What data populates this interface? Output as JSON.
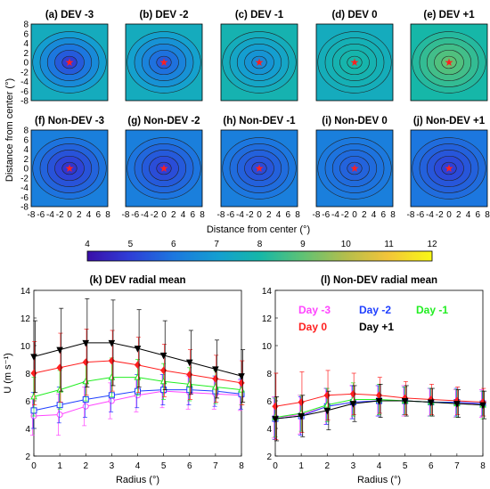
{
  "chart_data": [
    {
      "type": "heatmap",
      "group": "contour_maps",
      "xlabel": "Distance from center (°)",
      "ylabel": "Distance from center (°)",
      "x_ticks": [
        "-8",
        "-6",
        "-4",
        "-2",
        "0",
        "2",
        "4",
        "6",
        "8"
      ],
      "y_ticks": [
        "8",
        "6",
        "4",
        "2",
        "0",
        "-2",
        "-4",
        "-6",
        "-8"
      ],
      "xlim": [
        -8,
        8
      ],
      "ylim": [
        -8,
        8
      ],
      "colorbar": {
        "ticks": [
          "4",
          "5",
          "6",
          "7",
          "8",
          "9",
          "10",
          "11",
          "12"
        ],
        "range": [
          4,
          12
        ]
      },
      "panels": [
        {
          "title": "(a) DEV -3",
          "center_value": 5.0,
          "edge_value": 7.5
        },
        {
          "title": "(b) DEV -2",
          "center_value": 5.5,
          "edge_value": 7.5
        },
        {
          "title": "(c) DEV -1",
          "center_value": 6.5,
          "edge_value": 7.8
        },
        {
          "title": "(d) DEV 0",
          "center_value": 8.0,
          "edge_value": 7.5
        },
        {
          "title": "(e) DEV +1",
          "center_value": 9.0,
          "edge_value": 8.0
        },
        {
          "title": "(f) Non-DEV -3",
          "center_value": 4.8,
          "edge_value": 6.2
        },
        {
          "title": "(g) Non-DEV -2",
          "center_value": 5.0,
          "edge_value": 6.2
        },
        {
          "title": "(h) Non-DEV -1",
          "center_value": 5.2,
          "edge_value": 6.2
        },
        {
          "title": "(i) Non-DEV 0",
          "center_value": 5.5,
          "edge_value": 6.2
        },
        {
          "title": "(j) Non-DEV +1",
          "center_value": 5.0,
          "edge_value": 6.0
        }
      ],
      "colors": {
        "center_marker": "#ff2020"
      }
    },
    {
      "type": "line",
      "title": "(k) DEV radial mean",
      "xlabel": "Radius (°)",
      "ylabel": "U (m s⁻¹)",
      "x": [
        0,
        1,
        2,
        3,
        4,
        5,
        6,
        7,
        8
      ],
      "xlim": [
        0,
        8
      ],
      "ylim": [
        2,
        14
      ],
      "y_ticks": [
        "2",
        "4",
        "6",
        "8",
        "10",
        "12",
        "14"
      ],
      "x_ticks": [
        "0",
        "1",
        "2",
        "3",
        "4",
        "5",
        "6",
        "7",
        "8"
      ],
      "grid": false,
      "series": [
        {
          "name": "Day -3",
          "color": "#ff44ff",
          "marker": "circle",
          "values": [
            4.9,
            5.0,
            5.6,
            6.0,
            6.4,
            6.7,
            6.6,
            6.5,
            6.4
          ],
          "err": [
            1.4,
            1.5,
            1.4,
            1.3,
            1.2,
            1.2,
            1.2,
            1.1,
            1.1
          ]
        },
        {
          "name": "Day -2",
          "color": "#1f3fff",
          "marker": "square",
          "values": [
            5.3,
            5.7,
            6.1,
            6.4,
            6.7,
            6.8,
            6.8,
            6.7,
            6.5
          ],
          "err": [
            1.3,
            1.3,
            1.3,
            1.2,
            1.2,
            1.1,
            1.1,
            1.1,
            1.1
          ]
        },
        {
          "name": "Day -1",
          "color": "#22ee22",
          "marker": "triangle",
          "values": [
            6.3,
            6.8,
            7.4,
            7.7,
            7.7,
            7.4,
            7.2,
            7.0,
            6.8
          ],
          "err": [
            1.4,
            1.4,
            1.4,
            1.4,
            1.3,
            1.3,
            1.2,
            1.2,
            1.1
          ]
        },
        {
          "name": "Day 0",
          "color": "#ff2020",
          "marker": "diamond",
          "values": [
            8.0,
            8.4,
            8.8,
            8.9,
            8.6,
            8.2,
            7.9,
            7.6,
            7.3
          ],
          "err": [
            2.3,
            2.5,
            2.4,
            2.2,
            2.0,
            1.9,
            1.8,
            1.7,
            1.6
          ]
        },
        {
          "name": "Day +1",
          "color": "#000000",
          "marker": "triangle-down",
          "values": [
            9.2,
            9.7,
            10.2,
            10.2,
            9.8,
            9.3,
            8.8,
            8.3,
            7.8
          ],
          "err": [
            2.6,
            3.0,
            3.2,
            3.1,
            2.8,
            2.5,
            2.3,
            2.1,
            1.9
          ]
        }
      ]
    },
    {
      "type": "line",
      "title": "(l) Non-DEV radial mean",
      "xlabel": "Radius (°)",
      "x": [
        0,
        1,
        2,
        3,
        4,
        5,
        6,
        7,
        8
      ],
      "xlim": [
        0,
        8
      ],
      "ylim": [
        2,
        14
      ],
      "y_ticks": [
        "2",
        "4",
        "6",
        "8",
        "10",
        "12",
        "14"
      ],
      "x_ticks": [
        "0",
        "1",
        "2",
        "3",
        "4",
        "5",
        "6",
        "7",
        "8"
      ],
      "grid": false,
      "legend": {
        "placement": "top-right"
      },
      "series": [
        {
          "name": "Day -3",
          "color": "#ff44ff",
          "marker": "circle",
          "values": [
            4.8,
            5.0,
            5.6,
            5.9,
            6.0,
            6.0,
            5.9,
            5.8,
            5.8
          ],
          "err": [
            1.5,
            1.4,
            1.3,
            1.2,
            1.1,
            1.1,
            1.0,
            1.0,
            1.0
          ]
        },
        {
          "name": "Day -2",
          "color": "#1f3fff",
          "marker": "square",
          "values": [
            4.7,
            4.9,
            5.6,
            5.9,
            6.0,
            6.0,
            5.9,
            5.9,
            5.8
          ],
          "err": [
            1.5,
            1.4,
            1.3,
            1.2,
            1.1,
            1.0,
            1.0,
            1.0,
            0.9
          ]
        },
        {
          "name": "Day -1",
          "color": "#22ee22",
          "marker": "triangle",
          "values": [
            4.8,
            5.1,
            5.7,
            6.1,
            6.1,
            6.0,
            5.9,
            5.8,
            5.7
          ],
          "err": [
            1.4,
            1.3,
            1.2,
            1.2,
            1.1,
            1.0,
            1.0,
            1.0,
            1.0
          ]
        },
        {
          "name": "Day 0",
          "color": "#ff2020",
          "marker": "diamond",
          "values": [
            5.6,
            5.9,
            6.4,
            6.5,
            6.4,
            6.2,
            6.1,
            6.0,
            5.9
          ],
          "err": [
            2.4,
            2.2,
            1.8,
            1.5,
            1.3,
            1.2,
            1.1,
            1.0,
            1.0
          ]
        },
        {
          "name": "Day +1",
          "color": "#000000",
          "marker": "triangle-down",
          "values": [
            4.7,
            4.9,
            5.3,
            5.8,
            6.0,
            6.0,
            5.9,
            5.8,
            5.7
          ],
          "err": [
            1.6,
            1.5,
            1.4,
            1.3,
            1.2,
            1.1,
            1.0,
            1.0,
            1.0
          ]
        }
      ]
    }
  ]
}
